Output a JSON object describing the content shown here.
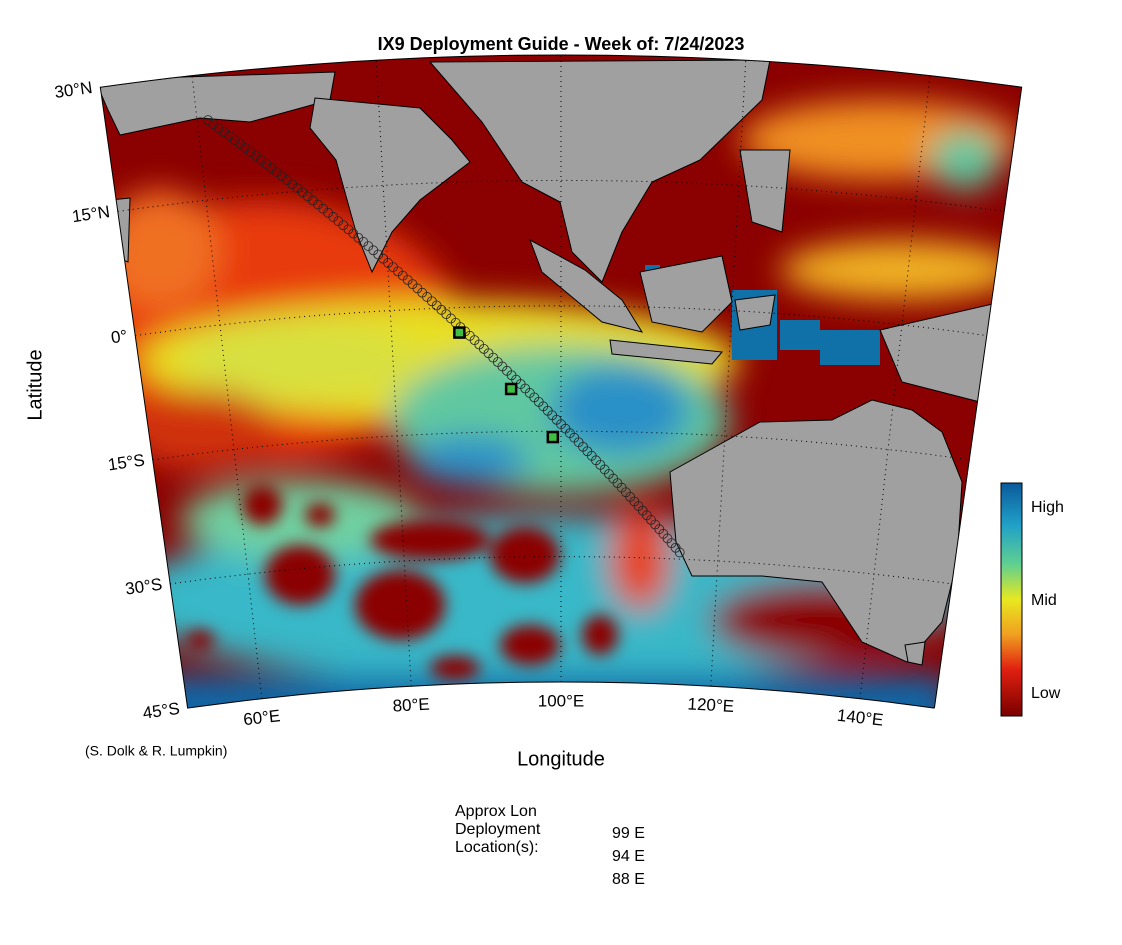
{
  "title": "IX9 Deployment Guide - Week of: 7/24/2023",
  "map": {
    "lon_range": [
      50,
      150
    ],
    "lat_range": [
      -45,
      30
    ],
    "lat_ticks": [
      {
        "value": 30,
        "label": "30°N"
      },
      {
        "value": 15,
        "label": "15°N"
      },
      {
        "value": 0,
        "label": "0°"
      },
      {
        "value": -15,
        "label": "15°S"
      },
      {
        "value": -30,
        "label": "30°S"
      },
      {
        "value": -45,
        "label": "45°S"
      }
    ],
    "lon_ticks": [
      {
        "value": 60,
        "label": "60°E"
      },
      {
        "value": 80,
        "label": "80°E"
      },
      {
        "value": 100,
        "label": "100°E"
      },
      {
        "value": 120,
        "label": "120°E"
      },
      {
        "value": 140,
        "label": "140°E"
      }
    ],
    "x_label": "Longitude",
    "y_label": "Latitude",
    "track": {
      "start": {
        "lon": 115.1,
        "lat": -29.2
      },
      "end": {
        "lon": 61.2,
        "lat": 24.5
      }
    },
    "deployments": [
      {
        "lon": 99,
        "lat": -15.7
      },
      {
        "lon": 94,
        "lat": -9.9
      },
      {
        "lon": 88,
        "lat": -3.0
      }
    ]
  },
  "colorbar": {
    "labels": [
      "High",
      "Mid",
      "Low"
    ]
  },
  "credit": "(S. Dolk & R. Lumpkin)",
  "deployment_info": {
    "heading": [
      "Approx Lon",
      "Deployment",
      "Location(s):"
    ],
    "locations": [
      "99 E",
      "94 E",
      "88 E"
    ]
  }
}
